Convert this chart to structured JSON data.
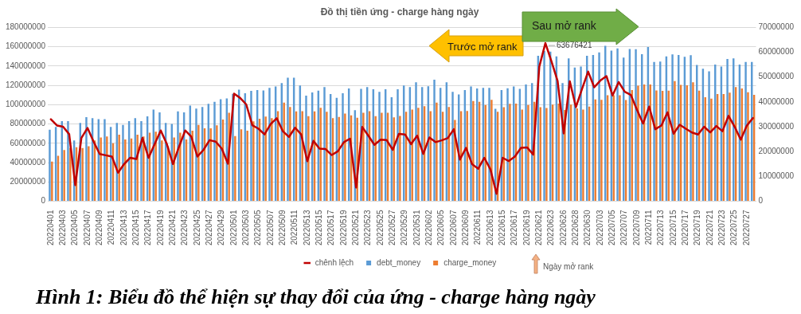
{
  "chart_data": {
    "type": "bar",
    "title": "Đồ thị tiền ứng - charge hàng ngày",
    "categories": [
      "20220401",
      null,
      "20220403",
      null,
      "20220405",
      null,
      "20220407",
      null,
      "20220409",
      null,
      "20220411",
      null,
      "20220413",
      null,
      "20220415",
      null,
      "20220417",
      null,
      "20220419",
      null,
      "20220421",
      null,
      "20220423",
      null,
      "20220425",
      null,
      "20220427",
      null,
      "20220429",
      null,
      "20220501",
      null,
      "20220503",
      null,
      "20220505",
      null,
      "20220507",
      null,
      "20220509",
      null,
      "20220511",
      null,
      "20220513",
      null,
      "20220515",
      null,
      "20220517",
      null,
      "20220519",
      null,
      "20220521",
      null,
      "20220523",
      null,
      "20220525",
      null,
      "20220527",
      null,
      "20220529",
      null,
      "20220531",
      null,
      "20220602",
      null,
      "20220605",
      null,
      "20220607",
      null,
      "20220609",
      null,
      "20220611",
      null,
      "20220613",
      null,
      "20220615",
      null,
      "20220617",
      null,
      "20220619",
      null,
      "20220621",
      null,
      "20220623",
      null,
      "20220626",
      null,
      "20220628",
      null,
      "20220630",
      null,
      "20220703",
      null,
      "20220705",
      null,
      "20220707",
      null,
      "20220709",
      null,
      "20220711",
      null,
      "20220713",
      null,
      "20220715",
      null,
      "20220717",
      null,
      "20220719",
      null,
      "20220721",
      null,
      "20220723",
      null,
      "20220725",
      null,
      "20220727",
      null
    ],
    "series": [
      {
        "name": "debt_money",
        "color": "#5b9bd5",
        "values": [
          74000000,
          77000000,
          83000000,
          83000000,
          63000000,
          81000000,
          87000000,
          86000000,
          85000000,
          85000000,
          77000000,
          81000000,
          79000000,
          83000000,
          86000000,
          83000000,
          88000000,
          95000000,
          92000000,
          81000000,
          80000000,
          93000000,
          92000000,
          99000000,
          96000000,
          97600000,
          100800000,
          103000000,
          105700000,
          106500000,
          111300000,
          115600000,
          111900000,
          114300000,
          115100000,
          114800000,
          117300000,
          118900000,
          122400000,
          128000000,
          128000000,
          119900000,
          109400000,
          112700000,
          114600000,
          118300000,
          111000000,
          107000000,
          111900000,
          116700000,
          94300000,
          116400000,
          118300000,
          115900000,
          113200000,
          115900000,
          107800000,
          115900000,
          119900000,
          118300000,
          123200000,
          118300000,
          119100000,
          125900000,
          117300000,
          123200000,
          113200000,
          110500000,
          115100000,
          118900000,
          116700000,
          117300000,
          117300000,
          95700000,
          115100000,
          117000000,
          118900000,
          116400000,
          121000000,
          122400000,
          150700000,
          155500000,
          155000000,
          150000000,
          122400000,
          148000000,
          138500000,
          139400000,
          150700000,
          151500000,
          154200000,
          160900000,
          156000000,
          158200000,
          148800000,
          157700000,
          157400000,
          152300000,
          159600000,
          144200000,
          144700000,
          150100000,
          152000000,
          151500000,
          149600000,
          151200000,
          141200000,
          137200000,
          134500000,
          141500000,
          139400000,
          147400000,
          147900000,
          141500000,
          144200000,
          144200000
        ]
      },
      {
        "name": "charge_money",
        "color": "#ed7d31",
        "values": [
          41000000,
          47000000,
          53000000,
          55000000,
          56000000,
          55000000,
          57000000,
          63000000,
          66000000,
          67000000,
          60000000,
          69000000,
          64000000,
          65000000,
          69000000,
          67000000,
          71000000,
          72000000,
          63000000,
          57000000,
          66000000,
          71000000,
          64000000,
          73000000,
          79000000,
          75500000,
          75500000,
          78700000,
          84600000,
          91600000,
          67400000,
          74400000,
          73000000,
          82700000,
          85400000,
          87600000,
          86000000,
          93300000,
          102200000,
          97600000,
          93000000,
          93300000,
          88100000,
          93000000,
          96800000,
          92700000,
          86000000,
          87300000,
          90800000,
          88900000,
          86500000,
          91600000,
          93300000,
          88100000,
          91600000,
          91600000,
          86800000,
          88400000,
          92700000,
          94900000,
          96800000,
          98400000,
          93300000,
          102200000,
          92700000,
          97600000,
          84100000,
          93300000,
          93500000,
          103800000,
          103000000,
          99700000,
          105100000,
          92700000,
          97300000,
          100800000,
          101100000,
          94900000,
          99700000,
          103000000,
          97300000,
          96500000,
          100000000,
          101100000,
          94600000,
          100000000,
          96200000,
          94900000,
          98100000,
          105400000,
          105100000,
          109700000,
          109700000,
          109700000,
          104900000,
          115100000,
          119700000,
          121000000,
          121000000,
          114800000,
          114300000,
          114600000,
          124500000,
          120500000,
          120000000,
          123200000,
          114600000,
          107800000,
          106200000,
          111000000,
          111000000,
          112400000,
          118300000,
          116700000,
          112900000,
          110200000
        ]
      },
      {
        "name": "chênh lệch",
        "type": "line",
        "axis": "y2",
        "color": "#c00000",
        "values": [
          33000000,
          30500000,
          30000000,
          27000000,
          6500000,
          25500000,
          29500000,
          24000000,
          19000000,
          18500000,
          18000000,
          11500000,
          15000000,
          17500000,
          17000000,
          25500000,
          17500000,
          23000000,
          28500000,
          23000000,
          15000000,
          22000000,
          28500000,
          26000000,
          18000000,
          20700000,
          24600000,
          24000000,
          21200000,
          15100000,
          43300000,
          41600000,
          39000000,
          30600000,
          29200000,
          26900000,
          31100000,
          33400000,
          28200000,
          25900000,
          29600000,
          26900000,
          16100000,
          24300000,
          21200000,
          21000000,
          18600000,
          20100000,
          23800000,
          25200000,
          5500000,
          29900000,
          26400000,
          22700000,
          24800000,
          24600000,
          20700000,
          27100000,
          26900000,
          23000000,
          26400000,
          19100000,
          25700000,
          23800000,
          24500000,
          25400000,
          29000000,
          16800000,
          21500000,
          14900000,
          13100000,
          17500000,
          12800000,
          3000000,
          17500000,
          16200000,
          18000000,
          21500000,
          21700000,
          18800000,
          54200000,
          63676421,
          56300000,
          48400000,
          27300000,
          48300000,
          37900000,
          45200000,
          52200000,
          45900000,
          48600000,
          50400000,
          42600000,
          48000000,
          44100000,
          42800000,
          36800000,
          31300000,
          38100000,
          29000000,
          30500000,
          35800000,
          27200000,
          30800000,
          29200000,
          27700000,
          26900000,
          30000000,
          27700000,
          30300000,
          28200000,
          34400000,
          30000000,
          24800000,
          30500000,
          33500000
        ],
        "value_labels": [
          null,
          null,
          null,
          null,
          null,
          null,
          null,
          null,
          null,
          null,
          null,
          null,
          null,
          null,
          null,
          null,
          null,
          null,
          null,
          null,
          null,
          null,
          null,
          null,
          null,
          null,
          null,
          null,
          null,
          null,
          null,
          null,
          null,
          null,
          null,
          null,
          null,
          null,
          null,
          null,
          null,
          null,
          null,
          null,
          null,
          null,
          null,
          null,
          null,
          null,
          null,
          null,
          null,
          null,
          null,
          null,
          null,
          null,
          null,
          null,
          null,
          null,
          null,
          null,
          null,
          null,
          null,
          null,
          null,
          null,
          null,
          null,
          null,
          null,
          null,
          null,
          null,
          null,
          null,
          null,
          null,
          "63676421",
          null,
          null,
          null,
          null,
          null,
          null,
          null,
          null,
          null,
          null,
          null,
          null,
          null,
          null,
          null,
          null,
          null,
          null,
          null,
          null,
          null,
          null,
          null,
          null,
          null,
          null,
          null,
          null,
          null,
          null,
          null,
          null,
          null,
          null
        ]
      }
    ],
    "ylim": [
      0,
      180000000
    ],
    "yticks": [
      0,
      20000000,
      40000000,
      60000000,
      80000000,
      100000000,
      120000000,
      140000000,
      160000000,
      180000000
    ],
    "y2lim": [
      0,
      70000000
    ],
    "y2ticks": [
      0,
      10000000,
      20000000,
      30000000,
      40000000,
      50000000,
      60000000,
      70000000
    ],
    "grid": "y",
    "legend": "bottom",
    "annotations": [
      "Trước mở rank",
      "Sau mở rank",
      "Ngày mở rank",
      "Hình 1: Biểu đồ thể hiện sự thay đổi của ứng - charge hàng ngày"
    ]
  }
}
